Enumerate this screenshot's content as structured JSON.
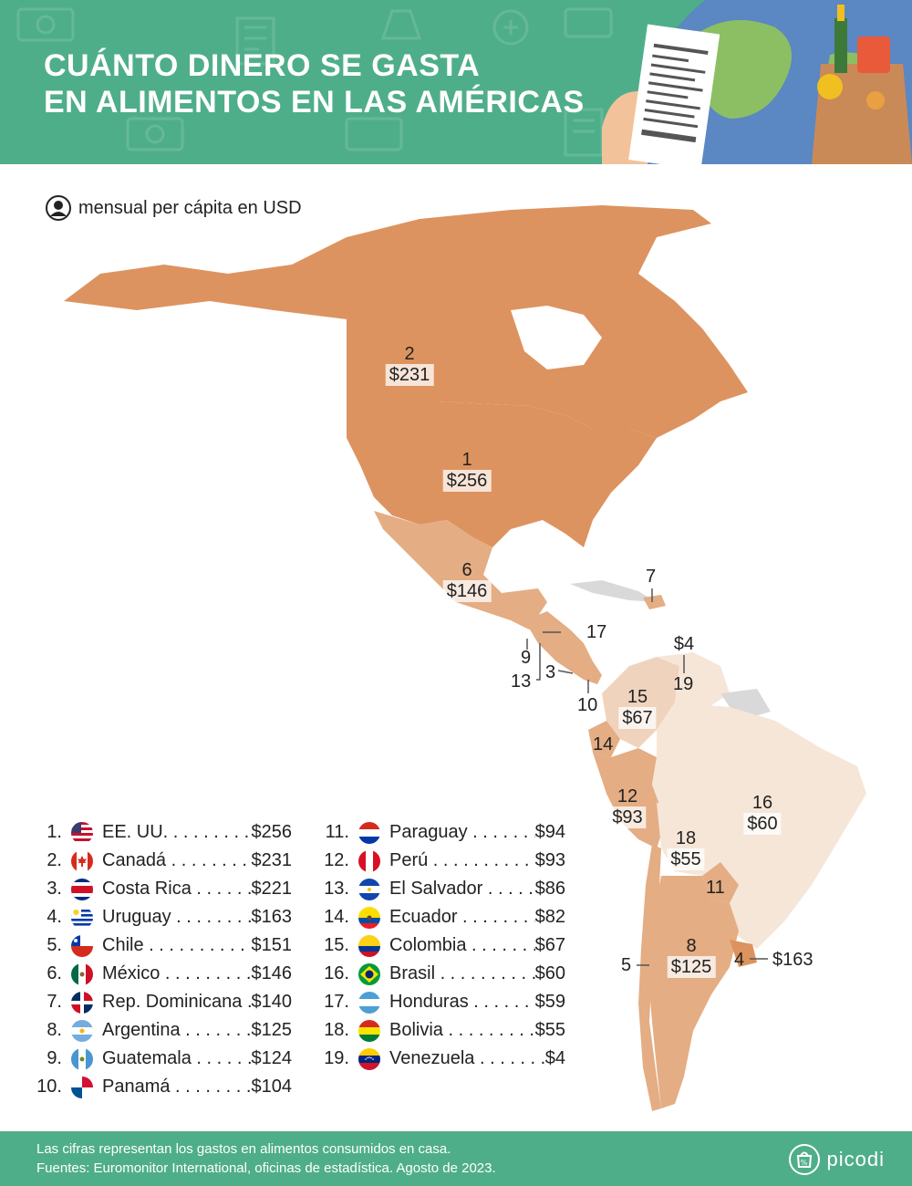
{
  "header": {
    "title_line1": "CUÁNTO DINERO SE GASTA",
    "title_line2": "EN ALIMENTOS EN LAS AMÉRICAS"
  },
  "subtitle": "mensual per cápita en USD",
  "colors": {
    "green": "#4fae8a",
    "dark_orange": "#dd935f",
    "mid_orange": "#e4ad84",
    "light_orange": "#f0d3bd",
    "very_light": "#f6e6d8",
    "no_data": "#d9d9d9"
  },
  "map_labels": {
    "us": {
      "rank": "1",
      "price": "$256"
    },
    "canada": {
      "rank": "2",
      "price": "$231"
    },
    "mexico": {
      "rank": "6",
      "price": "$146"
    },
    "dominicana": {
      "rank": "7"
    },
    "honduras": {
      "rank": "17"
    },
    "guatemala": {
      "rank": "9"
    },
    "el_salvador": {
      "rank": "13"
    },
    "costa_rica": {
      "rank": "3"
    },
    "panama": {
      "rank": "10"
    },
    "venezuela": {
      "rank": "19",
      "price": "$4"
    },
    "colombia": {
      "rank": "15",
      "price": "$67"
    },
    "ecuador": {
      "rank": "14"
    },
    "peru": {
      "rank": "12",
      "price": "$93"
    },
    "brasil": {
      "rank": "16",
      "price": "$60"
    },
    "bolivia": {
      "rank": "18",
      "price": "$55"
    },
    "paraguay": {
      "rank": "11"
    },
    "argentina": {
      "rank": "8",
      "price": "$125"
    },
    "chile": {
      "rank": "5"
    },
    "uruguay": {
      "rank": "4",
      "price": "$163"
    }
  },
  "ranking": [
    {
      "num": "1.",
      "name": "EE. UU.",
      "value": "$256",
      "flag": "us-flag-icon"
    },
    {
      "num": "2.",
      "name": "Canadá",
      "value": "$231",
      "flag": "canada-flag-icon"
    },
    {
      "num": "3.",
      "name": "Costa Rica",
      "value": "$221",
      "flag": "costa-rica-flag-icon"
    },
    {
      "num": "4.",
      "name": "Uruguay",
      "value": "$163",
      "flag": "uruguay-flag-icon"
    },
    {
      "num": "5.",
      "name": "Chile",
      "value": "$151",
      "flag": "chile-flag-icon"
    },
    {
      "num": "6.",
      "name": "México",
      "value": "$146",
      "flag": "mexico-flag-icon"
    },
    {
      "num": "7.",
      "name": "Rep. Dominicana",
      "value": "$140",
      "flag": "dominican-republic-flag-icon"
    },
    {
      "num": "8.",
      "name": "Argentina",
      "value": "$125",
      "flag": "argentina-flag-icon"
    },
    {
      "num": "9.",
      "name": "Guatemala",
      "value": "$124",
      "flag": "guatemala-flag-icon"
    },
    {
      "num": "10.",
      "name": "Panamá",
      "value": "$104",
      "flag": "panama-flag-icon"
    },
    {
      "num": "11.",
      "name": "Paraguay",
      "value": "$94",
      "flag": "paraguay-flag-icon"
    },
    {
      "num": "12.",
      "name": "Perú",
      "value": "$93",
      "flag": "peru-flag-icon"
    },
    {
      "num": "13.",
      "name": "El Salvador",
      "value": "$86",
      "flag": "el-salvador-flag-icon"
    },
    {
      "num": "14.",
      "name": "Ecuador",
      "value": "$82",
      "flag": "ecuador-flag-icon"
    },
    {
      "num": "15.",
      "name": "Colombia",
      "value": "$67",
      "flag": "colombia-flag-icon"
    },
    {
      "num": "16.",
      "name": "Brasil",
      "value": "$60",
      "flag": "brazil-flag-icon"
    },
    {
      "num": "17.",
      "name": "Honduras",
      "value": "$59",
      "flag": "honduras-flag-icon"
    },
    {
      "num": "18.",
      "name": "Bolivia",
      "value": "$55",
      "flag": "bolivia-flag-icon"
    },
    {
      "num": "19.",
      "name": "Venezuela",
      "value": "$4",
      "flag": "venezuela-flag-icon"
    }
  ],
  "footer": {
    "note_line1": "Las cifras representan los gastos en alimentos consumidos en casa.",
    "note_line2": "Fuentes: Euromonitor International, oficinas de estadística. Agosto de 2023.",
    "brand": "picodi"
  }
}
